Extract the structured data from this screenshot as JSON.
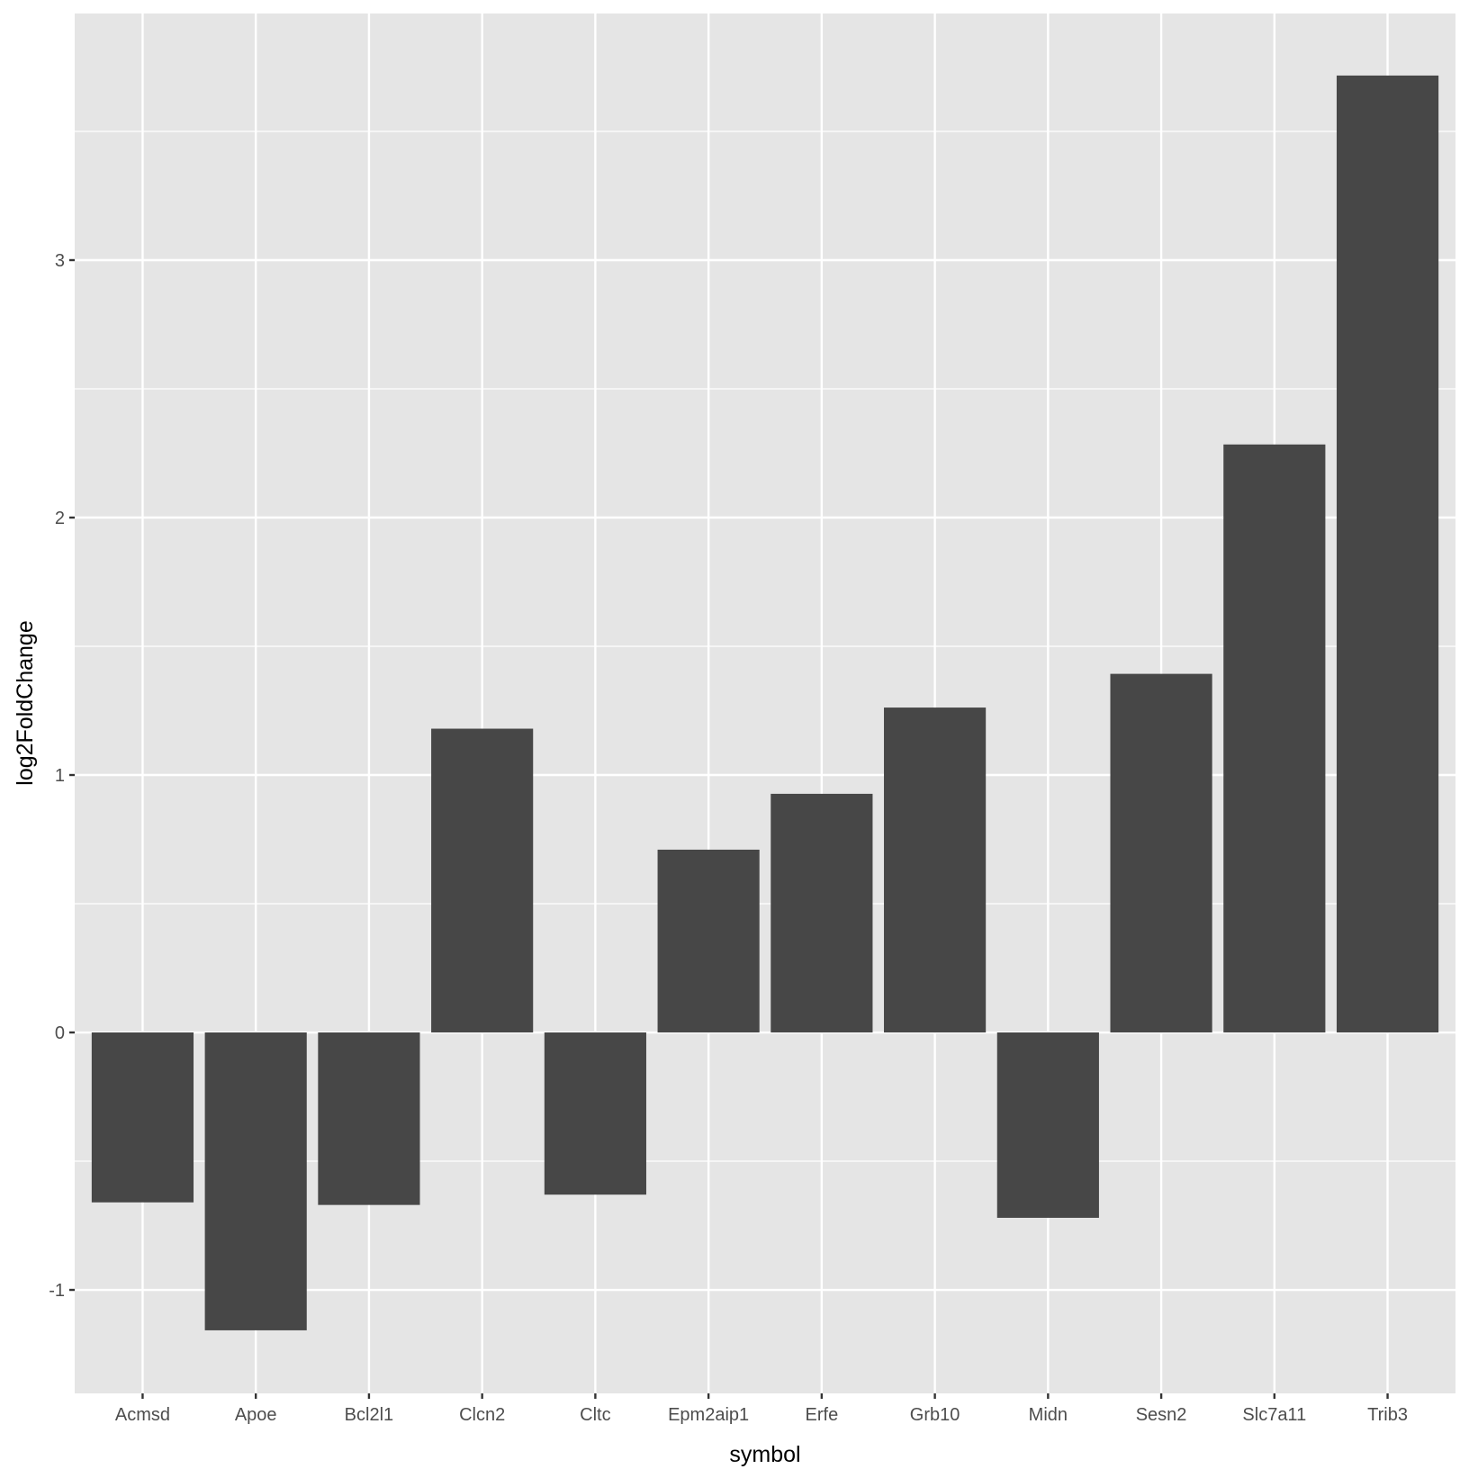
{
  "chart_data": {
    "type": "bar",
    "title": "",
    "xlabel": "symbol",
    "ylabel": "log2FoldChange",
    "categories": [
      "Acmsd",
      "Apoe",
      "Bcl2l1",
      "Clcn2",
      "Cltc",
      "Epm2aip1",
      "Erfe",
      "Grb10",
      "Midn",
      "Sesn2",
      "Slc7a11",
      "Trib3"
    ],
    "values": [
      -0.66,
      -1.157,
      -0.67,
      1.18,
      -0.63,
      0.71,
      0.927,
      1.262,
      -0.72,
      1.393,
      2.284,
      3.717
    ],
    "ylim": [
      -1.402,
      3.958
    ],
    "yticks": [
      "-1",
      "0",
      "1",
      "2",
      "3"
    ],
    "grid": true,
    "colors": {
      "bar": "#474747",
      "panel": "#e5e5e5",
      "grid": "#ffffff"
    }
  }
}
